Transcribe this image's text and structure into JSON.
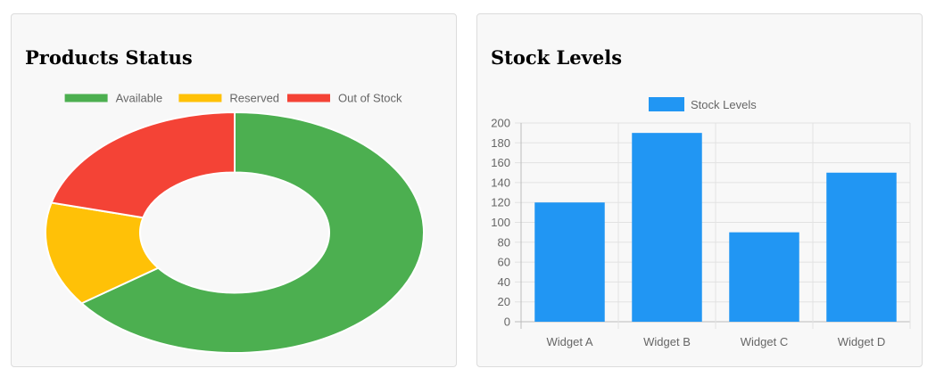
{
  "colors": {
    "available": "#4caf50",
    "reserved": "#ffc107",
    "out_of_stock": "#f44336",
    "bar": "#2196f3"
  },
  "chart_data": [
    {
      "type": "pie",
      "subtype": "doughnut",
      "title": "Products Status",
      "legend_position": "top",
      "categories": [
        "Available",
        "Reserved",
        "Out of Stock"
      ],
      "values": [
        65,
        14,
        21
      ],
      "colors": [
        "#4caf50",
        "#ffc107",
        "#f44336"
      ]
    },
    {
      "type": "bar",
      "title": "Stock Levels",
      "legend_position": "top",
      "categories": [
        "Widget A",
        "Widget B",
        "Widget C",
        "Widget D"
      ],
      "series": [
        {
          "name": "Stock Levels",
          "values": [
            120,
            190,
            90,
            150
          ],
          "color": "#2196f3"
        }
      ],
      "ylim": [
        0,
        200
      ],
      "yticks": [
        0,
        20,
        40,
        60,
        80,
        100,
        120,
        140,
        160,
        180,
        200
      ],
      "grid": true
    }
  ]
}
